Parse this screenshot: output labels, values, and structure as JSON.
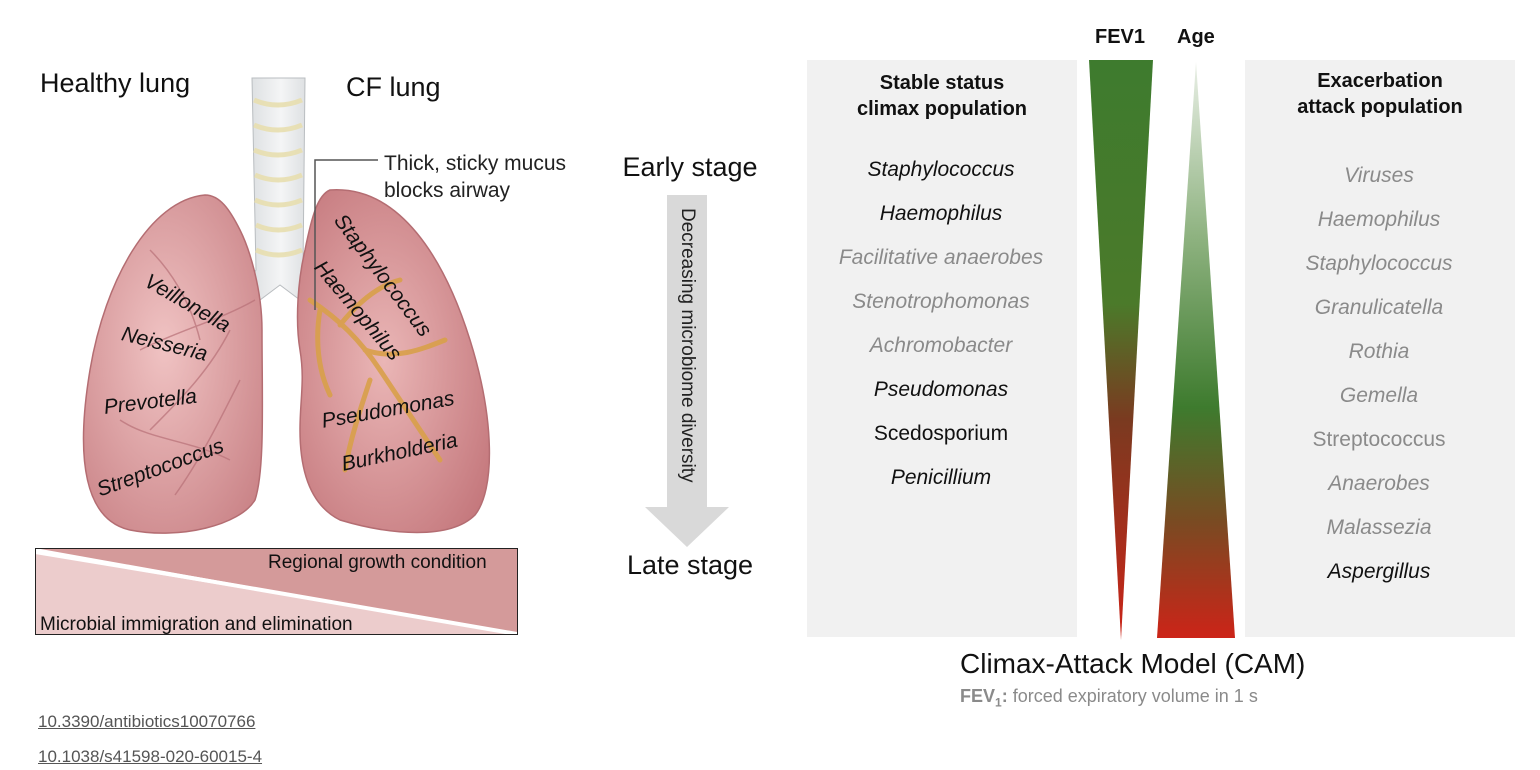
{
  "lung_figure": {
    "healthy_title": "Healthy lung",
    "cf_title": "CF lung",
    "mucus_callout_line1": "Thick, sticky mucus",
    "mucus_callout_line2": "blocks airway",
    "healthy_microbes": [
      "Veillonella",
      "Neisseria",
      "Prevotella",
      "Streptococcus"
    ],
    "cf_microbes": [
      "Staphylococcus",
      "Haemophilus",
      "Pseudomonas",
      "Burkholderia"
    ],
    "gradient_top_label": "Regional growth condition",
    "gradient_bottom_label": "Microbial immigration and elimination"
  },
  "progression": {
    "early": "Early stage",
    "late": "Late stage",
    "arrow_label": "Decreasing microbiome diversity"
  },
  "cam": {
    "fev1_label": "FEV1",
    "age_label": "Age",
    "stable_title_line1": "Stable status",
    "stable_title_line2": "climax population",
    "stable_items": [
      {
        "name": "Staphylococcus",
        "emphasis": "dark",
        "italic": true
      },
      {
        "name": "Haemophilus",
        "emphasis": "dark",
        "italic": true
      },
      {
        "name": "Facilitative anaerobes",
        "emphasis": "grey",
        "italic": true
      },
      {
        "name": "Stenotrophomonas",
        "emphasis": "grey",
        "italic": true
      },
      {
        "name": "Achromobacter",
        "emphasis": "grey",
        "italic": true
      },
      {
        "name": "Pseudomonas",
        "emphasis": "dark",
        "italic": true
      },
      {
        "name": "Scedosporium",
        "emphasis": "dark",
        "italic": false
      },
      {
        "name": "Penicillium",
        "emphasis": "dark",
        "italic": true
      }
    ],
    "exacerbation_title_line1": "Exacerbation",
    "exacerbation_title_line2": "attack population",
    "exacerbation_items": [
      {
        "name": "Viruses",
        "emphasis": "grey",
        "italic": true
      },
      {
        "name": "Haemophilus",
        "emphasis": "grey",
        "italic": true
      },
      {
        "name": "Staphylococcus",
        "emphasis": "grey",
        "italic": true
      },
      {
        "name": "Granulicatella",
        "emphasis": "grey",
        "italic": true
      },
      {
        "name": "Rothia",
        "emphasis": "grey",
        "italic": true
      },
      {
        "name": "Gemella",
        "emphasis": "grey",
        "italic": true
      },
      {
        "name": "Streptococcus",
        "emphasis": "grey",
        "italic": false
      },
      {
        "name": "Anaerobes",
        "emphasis": "grey",
        "italic": true
      },
      {
        "name": "Malassezia",
        "emphasis": "grey",
        "italic": true
      },
      {
        "name": "Aspergillus",
        "emphasis": "dark",
        "italic": true
      }
    ],
    "model_title": "Climax-Attack Model (CAM)",
    "footnote_term": "FEV",
    "footnote_sub": "1",
    "footnote_colon": ":",
    "footnote_text": " forced expiratory volume in 1 s"
  },
  "references": [
    "10.3390/antibiotics10070766",
    "10.1038/s41598-020-60015-4"
  ],
  "colors": {
    "lung_fill": "#e4a5a5",
    "lung_dark": "#c97c80",
    "mucus": "#d9a04a",
    "gradient_band": "#d49a9a",
    "fev_green": "#3f7d2c",
    "fev_red": "#c0261c",
    "panel_bg": "#f1f1f1",
    "grey_text": "#8a8a8a"
  }
}
